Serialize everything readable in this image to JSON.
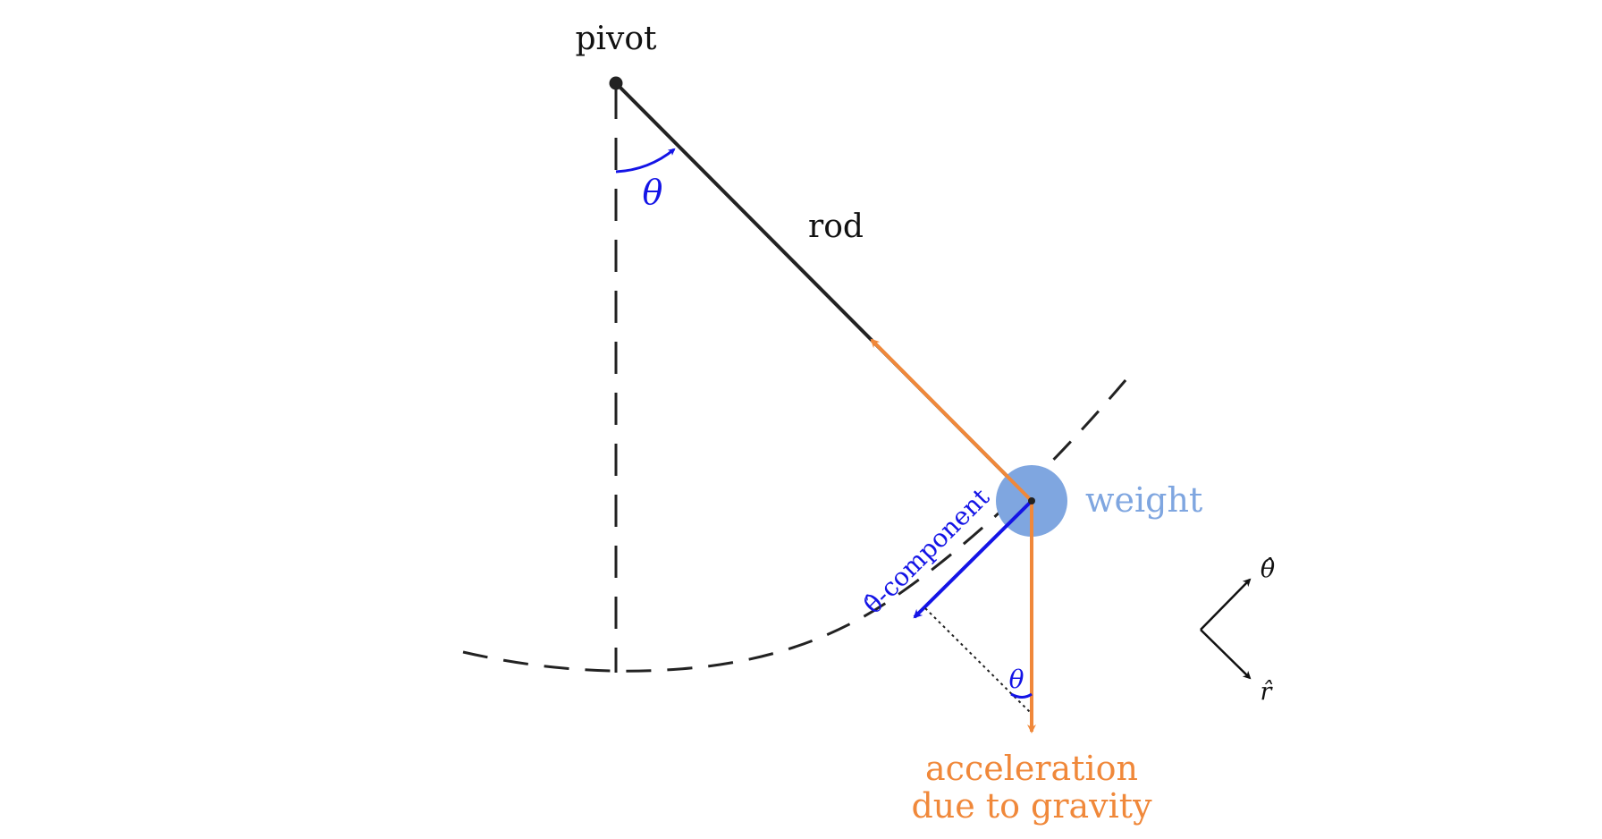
{
  "labels": {
    "pivot": "pivot",
    "rod": "rod",
    "weight": "weight",
    "theta_component": "θ̂-component",
    "gravity_line1": "acceleration",
    "gravity_line2": "due to gravity",
    "theta_angle": "θ",
    "theta_angle_small": "θ",
    "theta_hat": "θ̂",
    "r_hat": "r̂"
  },
  "colors": {
    "rod": "#222222",
    "dashed": "#222222",
    "weight": "#7fa6e0",
    "weight_label": "#7fa6e0",
    "gravity": "#f0883a",
    "theta_component": "#1414e6",
    "angle": "#1414e6",
    "basis": "#111111"
  }
}
